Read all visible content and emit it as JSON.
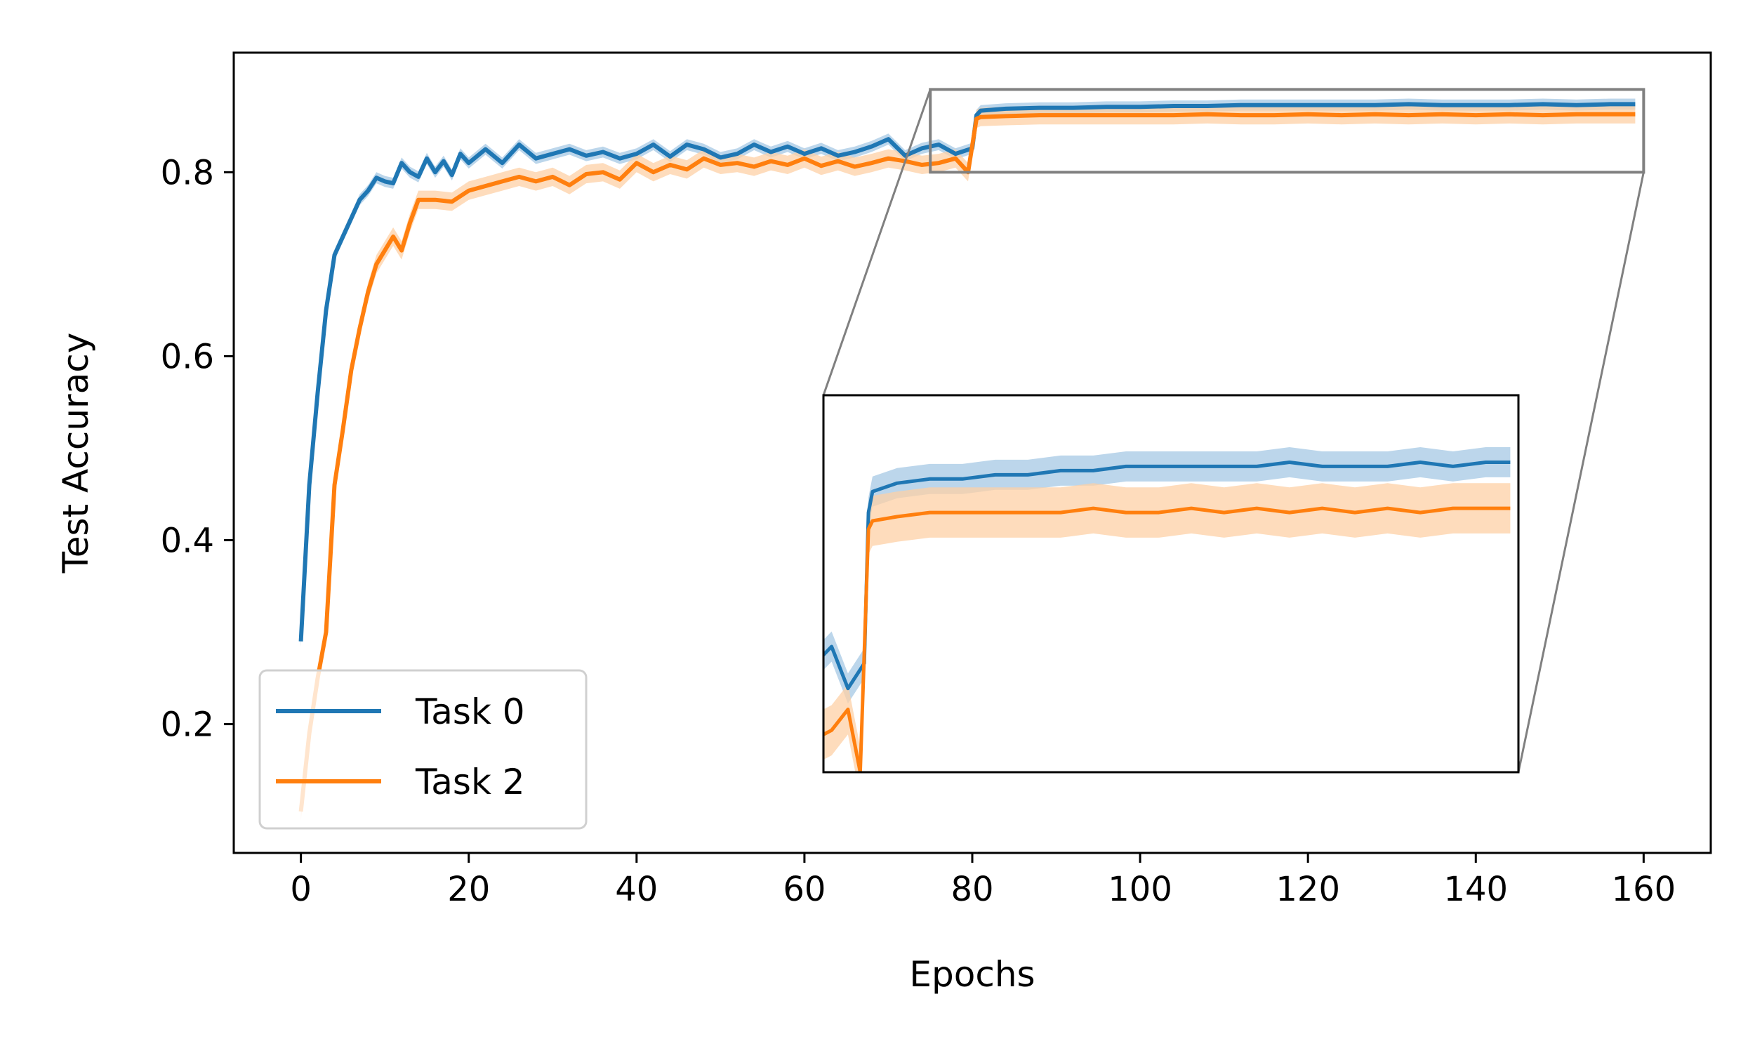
{
  "chart_data": {
    "type": "line",
    "title": "",
    "xlabel": "Epochs",
    "ylabel": "Test Accuracy",
    "xlim": [
      -8,
      168
    ],
    "ylim": [
      0.06,
      0.93
    ],
    "xticks": [
      0,
      20,
      40,
      60,
      80,
      100,
      120,
      140,
      160
    ],
    "yticks": [
      0.2,
      0.4,
      0.6,
      0.8
    ],
    "xtick_labels": [
      "0",
      "20",
      "40",
      "60",
      "80",
      "100",
      "120",
      "140",
      "160"
    ],
    "ytick_labels": [
      "0.2",
      "0.4",
      "0.6",
      "0.8"
    ],
    "grid": false,
    "legend": {
      "position": "lower-left",
      "entries": [
        "Task 0",
        "Task 2"
      ]
    },
    "series": [
      {
        "name": "Task 0",
        "color": "#1f77b4",
        "band_color": "#a6c8e4",
        "points": [
          [
            0,
            0.29
          ],
          [
            1,
            0.46
          ],
          [
            2,
            0.56
          ],
          [
            3,
            0.65
          ],
          [
            4,
            0.71
          ],
          [
            5,
            0.73
          ],
          [
            6,
            0.75
          ],
          [
            7,
            0.77
          ],
          [
            8,
            0.78
          ],
          [
            9,
            0.794
          ],
          [
            10,
            0.79
          ],
          [
            11,
            0.788
          ],
          [
            12,
            0.81
          ],
          [
            13,
            0.8
          ],
          [
            14,
            0.795
          ],
          [
            15,
            0.815
          ],
          [
            16,
            0.8
          ],
          [
            17,
            0.812
          ],
          [
            18,
            0.797
          ],
          [
            19,
            0.82
          ],
          [
            20,
            0.81
          ],
          [
            22,
            0.825
          ],
          [
            24,
            0.81
          ],
          [
            26,
            0.83
          ],
          [
            28,
            0.815
          ],
          [
            30,
            0.82
          ],
          [
            32,
            0.825
          ],
          [
            34,
            0.818
          ],
          [
            36,
            0.822
          ],
          [
            38,
            0.815
          ],
          [
            40,
            0.82
          ],
          [
            42,
            0.83
          ],
          [
            44,
            0.817
          ],
          [
            46,
            0.83
          ],
          [
            48,
            0.825
          ],
          [
            50,
            0.816
          ],
          [
            52,
            0.82
          ],
          [
            54,
            0.83
          ],
          [
            56,
            0.822
          ],
          [
            58,
            0.828
          ],
          [
            60,
            0.82
          ],
          [
            62,
            0.826
          ],
          [
            64,
            0.818
          ],
          [
            66,
            0.822
          ],
          [
            68,
            0.828
          ],
          [
            70,
            0.836
          ],
          [
            72,
            0.818
          ],
          [
            74,
            0.826
          ],
          [
            76,
            0.83
          ],
          [
            78,
            0.82
          ],
          [
            80,
            0.826
          ],
          [
            80.5,
            0.862
          ],
          [
            81,
            0.867
          ],
          [
            84,
            0.869
          ],
          [
            88,
            0.87
          ],
          [
            92,
            0.87
          ],
          [
            96,
            0.871
          ],
          [
            100,
            0.871
          ],
          [
            104,
            0.872
          ],
          [
            108,
            0.872
          ],
          [
            112,
            0.873
          ],
          [
            116,
            0.873
          ],
          [
            120,
            0.873
          ],
          [
            124,
            0.873
          ],
          [
            128,
            0.873
          ],
          [
            132,
            0.874
          ],
          [
            136,
            0.873
          ],
          [
            140,
            0.873
          ],
          [
            144,
            0.873
          ],
          [
            148,
            0.874
          ],
          [
            152,
            0.873
          ],
          [
            156,
            0.874
          ],
          [
            159,
            0.874
          ]
        ],
        "band": 0.006
      },
      {
        "name": "Task 2",
        "color": "#ff7f0e",
        "band_color": "#fdd0a5",
        "points": [
          [
            0,
            0.105
          ],
          [
            1,
            0.19
          ],
          [
            2,
            0.25
          ],
          [
            3,
            0.3
          ],
          [
            4,
            0.46
          ],
          [
            5,
            0.52
          ],
          [
            6,
            0.585
          ],
          [
            7,
            0.63
          ],
          [
            8,
            0.67
          ],
          [
            9,
            0.7
          ],
          [
            10,
            0.715
          ],
          [
            11,
            0.73
          ],
          [
            12,
            0.715
          ],
          [
            13,
            0.745
          ],
          [
            14,
            0.77
          ],
          [
            16,
            0.77
          ],
          [
            18,
            0.768
          ],
          [
            20,
            0.78
          ],
          [
            22,
            0.785
          ],
          [
            24,
            0.79
          ],
          [
            26,
            0.795
          ],
          [
            28,
            0.79
          ],
          [
            30,
            0.795
          ],
          [
            32,
            0.786
          ],
          [
            34,
            0.798
          ],
          [
            36,
            0.8
          ],
          [
            38,
            0.792
          ],
          [
            40,
            0.81
          ],
          [
            42,
            0.8
          ],
          [
            44,
            0.808
          ],
          [
            46,
            0.803
          ],
          [
            48,
            0.815
          ],
          [
            50,
            0.808
          ],
          [
            52,
            0.81
          ],
          [
            54,
            0.806
          ],
          [
            56,
            0.812
          ],
          [
            58,
            0.808
          ],
          [
            60,
            0.815
          ],
          [
            62,
            0.807
          ],
          [
            64,
            0.812
          ],
          [
            66,
            0.806
          ],
          [
            68,
            0.81
          ],
          [
            70,
            0.815
          ],
          [
            72,
            0.812
          ],
          [
            74,
            0.808
          ],
          [
            76,
            0.81
          ],
          [
            78,
            0.815
          ],
          [
            79.5,
            0.8
          ],
          [
            80.5,
            0.858
          ],
          [
            81,
            0.86
          ],
          [
            84,
            0.861
          ],
          [
            88,
            0.862
          ],
          [
            92,
            0.862
          ],
          [
            96,
            0.862
          ],
          [
            100,
            0.862
          ],
          [
            104,
            0.862
          ],
          [
            108,
            0.863
          ],
          [
            112,
            0.862
          ],
          [
            116,
            0.862
          ],
          [
            120,
            0.863
          ],
          [
            124,
            0.862
          ],
          [
            128,
            0.863
          ],
          [
            132,
            0.862
          ],
          [
            136,
            0.863
          ],
          [
            140,
            0.862
          ],
          [
            144,
            0.863
          ],
          [
            148,
            0.862
          ],
          [
            152,
            0.863
          ],
          [
            156,
            0.863
          ],
          [
            159,
            0.863
          ]
        ],
        "band": 0.01
      }
    ],
    "inset": {
      "xlim": [
        75,
        160
      ],
      "ylim": [
        0.8,
        0.89
      ]
    }
  }
}
